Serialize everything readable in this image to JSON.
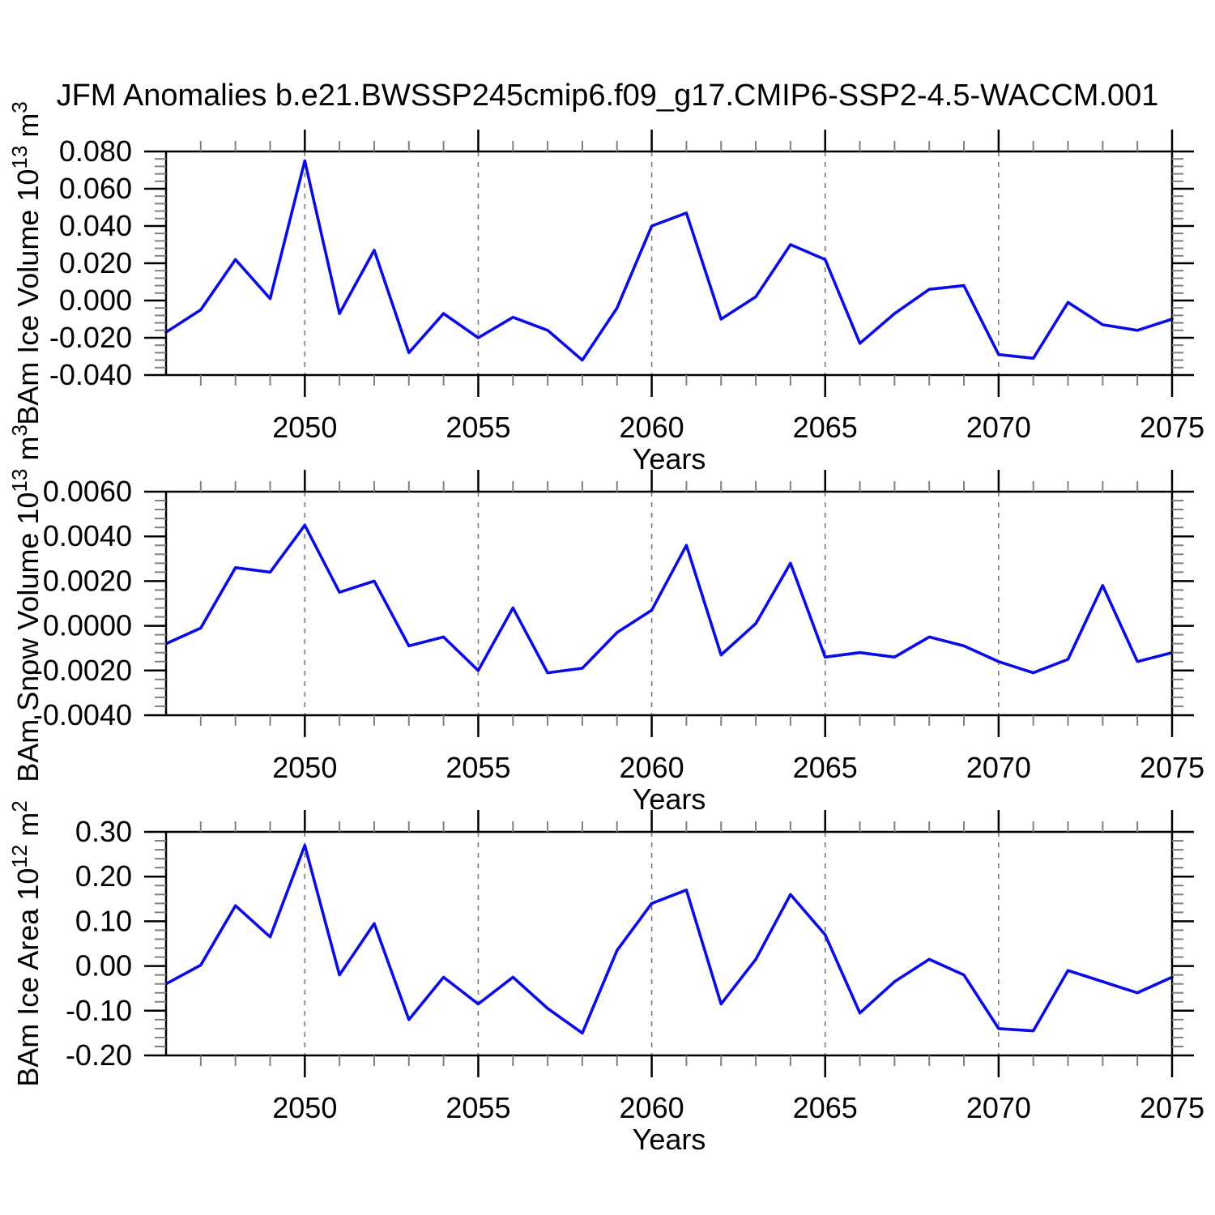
{
  "title": "JFM Anomalies b.e21.BWSSP245cmip6.f09_g17.CMIP6-SSP2-4.5-WACCM.001",
  "chart_data": {
    "type": "line",
    "series_count": 1,
    "line_color": "#0b0be8",
    "grid": "vertical-dashed-at-major-xticks",
    "grid_color": "#7a7a7a",
    "minor_tick_color": "#808080",
    "major_tick_color": "#000000",
    "xlabel": "Years",
    "xlim": [
      2046,
      2075
    ],
    "xticks": [
      2050,
      2055,
      2060,
      2065,
      2070,
      2075
    ],
    "x_minor_step": 1,
    "x": [
      2046,
      2047,
      2048,
      2049,
      2050,
      2051,
      2052,
      2053,
      2054,
      2055,
      2056,
      2057,
      2058,
      2059,
      2060,
      2061,
      2062,
      2063,
      2064,
      2065,
      2066,
      2067,
      2068,
      2069,
      2070,
      2071,
      2072,
      2073,
      2074,
      2075
    ],
    "panels": [
      {
        "name": "ice-volume",
        "ylabel_parts": [
          "BAm Ice Volume 10",
          "13",
          " m",
          "3"
        ],
        "ylabel_plain": "BAm Ice Volume 10^13 m^3",
        "ylim": [
          -0.04,
          0.08
        ],
        "ytick_labels": [
          "0.080",
          "0.060",
          "0.040",
          "0.020",
          "0.000",
          "-0.020",
          "-0.040"
        ],
        "ytick_values": [
          0.08,
          0.06,
          0.04,
          0.02,
          0.0,
          -0.02,
          -0.04
        ],
        "y_minor_step": 0.004,
        "values": [
          -0.017,
          -0.005,
          0.022,
          0.001,
          0.075,
          -0.007,
          0.027,
          -0.028,
          -0.007,
          -0.02,
          -0.009,
          -0.016,
          -0.032,
          -0.004,
          0.04,
          0.047,
          -0.01,
          0.002,
          0.03,
          0.022,
          -0.023,
          -0.007,
          0.006,
          0.008,
          -0.029,
          -0.031,
          -0.001,
          -0.013,
          -0.016,
          -0.01
        ]
      },
      {
        "name": "snow-volume",
        "ylabel_parts": [
          "BAm Snow Volume 10",
          "13",
          " m",
          "3"
        ],
        "ylabel_plain": "BAm Snow Volume 10^13 m^3",
        "ylim": [
          -0.004,
          0.006
        ],
        "ytick_labels": [
          "0.0060",
          "0.0040",
          "0.0020",
          "0.0000",
          "-0.0020",
          "-0.0040"
        ],
        "ytick_values": [
          0.006,
          0.004,
          0.002,
          0.0,
          -0.002,
          -0.004
        ],
        "y_minor_step": 0.0004,
        "values": [
          -0.0008,
          -0.0001,
          0.0026,
          0.0024,
          0.0045,
          0.0015,
          0.002,
          -0.0009,
          -0.0005,
          -0.002,
          0.0008,
          -0.0021,
          -0.0019,
          -0.0003,
          0.0007,
          0.0036,
          -0.0013,
          0.0001,
          0.0028,
          -0.0014,
          -0.0012,
          -0.0014,
          -0.0005,
          -0.0009,
          -0.0016,
          -0.0021,
          -0.0015,
          0.0018,
          -0.0016,
          -0.0012
        ]
      },
      {
        "name": "ice-area",
        "ylabel_parts": [
          "BAm Ice Area 10",
          "12",
          " m",
          "2"
        ],
        "ylabel_plain": "BAm Ice Area 10^12 m^2",
        "ylim": [
          -0.2,
          0.3
        ],
        "ytick_labels": [
          "0.30",
          "0.20",
          "0.10",
          "0.00",
          "-0.10",
          "-0.20"
        ],
        "ytick_values": [
          0.3,
          0.2,
          0.1,
          0.0,
          -0.1,
          -0.2
        ],
        "y_minor_step": 0.02,
        "values": [
          -0.04,
          0.002,
          0.135,
          0.065,
          0.27,
          -0.02,
          0.095,
          -0.12,
          -0.025,
          -0.085,
          -0.025,
          -0.095,
          -0.15,
          0.035,
          0.14,
          0.17,
          -0.085,
          0.015,
          0.16,
          0.07,
          -0.105,
          -0.035,
          0.015,
          -0.02,
          -0.14,
          -0.145,
          -0.01,
          -0.035,
          -0.06,
          -0.025
        ]
      }
    ]
  }
}
